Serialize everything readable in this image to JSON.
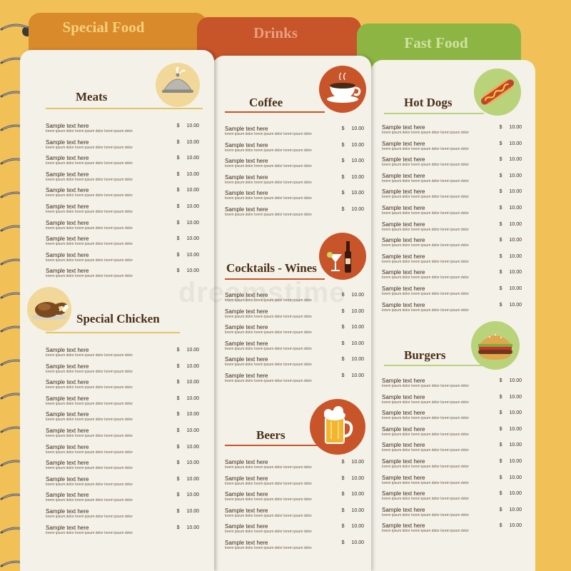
{
  "tabs": [
    {
      "label": "Special Food"
    },
    {
      "label": "Drinks"
    },
    {
      "label": "Fast Food"
    }
  ],
  "colors": {
    "special_food_tab": "#d98a2b",
    "special_food_text": "#f6d07a",
    "drinks_tab": "#c8542a",
    "drinks_text": "#e8a07e",
    "fast_food_tab": "#8db543",
    "fast_food_text": "#cfe3a0",
    "background": "#f1c057",
    "page": "#f4f1e8",
    "icon_disc_light": "#f1d898",
    "icon_disc_dark": "#c8542a",
    "icon_disc_green": "#b9d37a"
  },
  "sections": {
    "meats": {
      "title": "Meats",
      "icon": "serving-cloche-icon"
    },
    "special_chicken": {
      "title": "Special Chicken",
      "icon": "roast-chicken-icon"
    },
    "coffee": {
      "title": "Coffee",
      "icon": "coffee-cup-icon"
    },
    "cocktails_wines": {
      "title": "Cocktails - Wines",
      "icon": "wine-cocktail-icon"
    },
    "beers": {
      "title": "Beers",
      "icon": "beer-mug-icon"
    },
    "hot_dogs": {
      "title": "Hot Dogs",
      "icon": "hot-dog-icon"
    },
    "burgers": {
      "title": "Burgers",
      "icon": "burger-icon"
    }
  },
  "item": {
    "name": "Sample text here",
    "desc": "lorem ipsum dolor lorem ipsum dolor lorem ipsum dolor",
    "currency": "$",
    "price": "10.00"
  },
  "watermark": "dreamstime"
}
